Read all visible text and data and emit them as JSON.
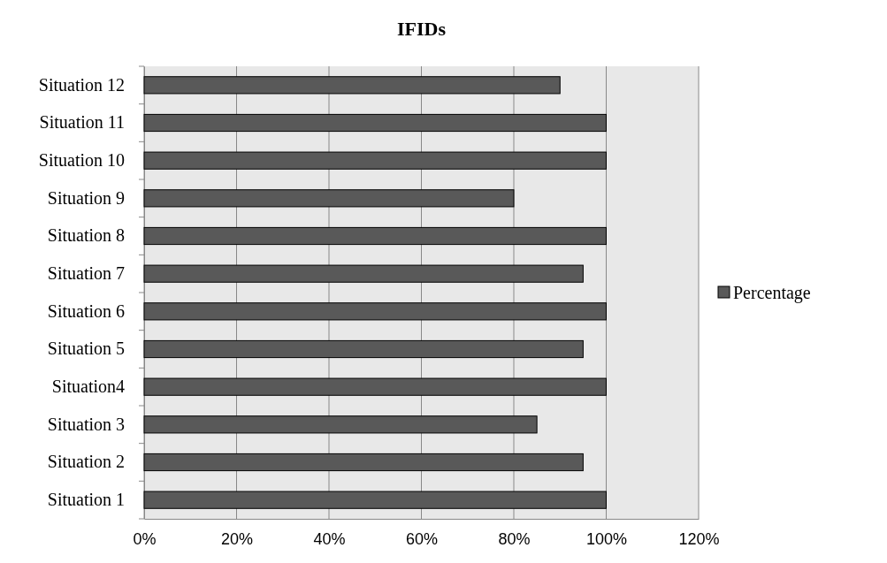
{
  "chart_data": {
    "type": "bar",
    "orientation": "horizontal",
    "title": "IFIDs",
    "categories": [
      "Situation 12",
      "Situation 11",
      "Situation 10",
      "Situation 9",
      "Situation 8",
      "Situation 7",
      "Situation 6",
      "Situation 5",
      "Situation4",
      "Situation 3",
      "Situation 2",
      "Situation 1"
    ],
    "series": [
      {
        "name": "Percentage",
        "color": "#595959",
        "values": [
          90,
          100,
          100,
          80,
          100,
          95,
          100,
          95,
          100,
          85,
          95,
          100
        ]
      }
    ],
    "xlim": [
      0,
      120
    ],
    "xticks": [
      {
        "value": 0,
        "label": "0%"
      },
      {
        "value": 20,
        "label": "20%"
      },
      {
        "value": 40,
        "label": "40%"
      },
      {
        "value": 60,
        "label": "60%"
      },
      {
        "value": 80,
        "label": "80%"
      },
      {
        "value": 100,
        "label": "100%"
      },
      {
        "value": 120,
        "label": "120%"
      }
    ],
    "grid": "x",
    "legend": "right"
  }
}
